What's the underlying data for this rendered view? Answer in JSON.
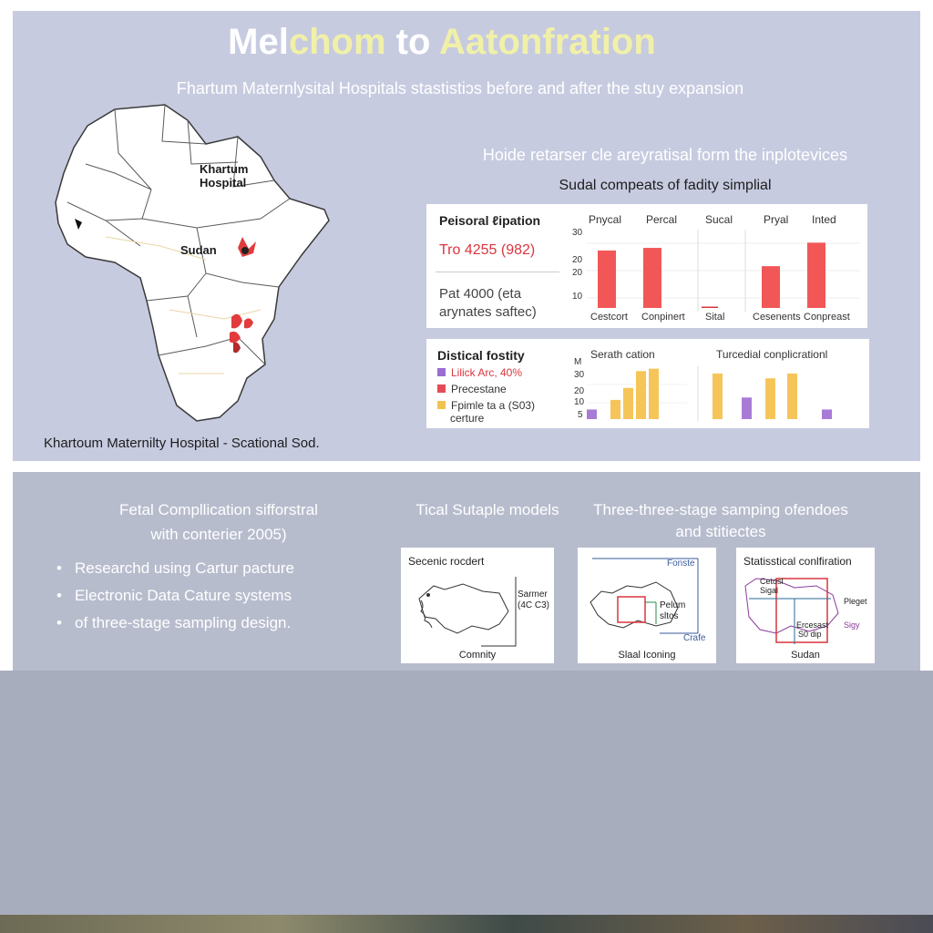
{
  "header": {
    "title_part1": "Mel",
    "title_part2": "chom",
    "title_part3": " to ",
    "title_part4": "Aatonfration",
    "subtitle": "Fhartum Maternlysital Hospitals stastistiɔs before and after the stuy expansion"
  },
  "map": {
    "label_hospital_line1": "Khartum",
    "label_hospital_line2": "Hospital",
    "label_country": "Sudan",
    "caption": "Khartoum Maternilty Hospital - Scational Sod."
  },
  "side": {
    "heading": "Hoide retarser cle areyratisal form the inplotevices",
    "subheading": "Sudal compeats of fadity simplial"
  },
  "card1": {
    "left_title": "Peisoral ℓipation",
    "left_value_red": "Tro 4255 (982)",
    "left_value_line1": "Pat 4000 (eta",
    "left_value_line2": "arynates saftec)",
    "col_labels": [
      "Pnycal",
      "Percal",
      "Sucal",
      "Pryal",
      "Inted"
    ],
    "y_ticks": [
      "30",
      "20",
      "10"
    ],
    "y_ticks_extra": "20",
    "x_labels": [
      "Cestcort",
      "Conpinert",
      "Sital",
      "Cesenents",
      "Conpreast"
    ]
  },
  "card2": {
    "left_title": "Distical fostity",
    "legend": [
      {
        "label": "Lilick Arc, 40%",
        "color": "#9b6cd1"
      },
      {
        "label": "Precestane",
        "color": "#e44c55"
      },
      {
        "label": "Fpimle ta a (S03)",
        "color": "#f2c251"
      }
    ],
    "legend_extra": "certure",
    "mid_title": "Serath cation",
    "right_title": "Turcedial conplicrationl",
    "y_ticks": [
      "M",
      "30",
      "20",
      "10",
      "5"
    ]
  },
  "mid": {
    "left_heading_line1": "Fetal Compllication sifforstral",
    "left_heading_line2": "with conterier 2005)",
    "bullets": [
      "Researchd using Cartur pacture",
      "Electronic Data Cature systems",
      "of three-stage sampling design."
    ],
    "heading_center": "Tical Sutaple models",
    "heading_right_line1": "Three-three-stage samping ofendoes",
    "heading_right_line2": "and stitiectes"
  },
  "map_cards": [
    {
      "title": "Secenic rocdert",
      "side_label_1": "Sarmer",
      "side_label_2": "(4C C3)",
      "caption": "Comnity"
    },
    {
      "title": "Fonste",
      "side_label_1": "Pelum",
      "side_label_2": "sltos",
      "side_label_3": "Crafe",
      "caption": "Slaal Iconing"
    },
    {
      "title": "Statisstical conlfiration",
      "side_label_1": "Cetosl",
      "side_label_2": "Sigal",
      "side_label_3": "Pleget",
      "side_label_4": "Sigy",
      "side_label_5": "Ercesast",
      "side_label_6": "S0 dip",
      "caption": "Sudan"
    }
  ],
  "colors": {
    "red_bar": "#f25757",
    "yellow_bar": "#f6c55a",
    "purple_bar": "#a87bd7",
    "panel_top": "#c7cbe0",
    "panel_mid": "#b7bccd"
  },
  "charts": {
    "card1_bars": [
      {
        "column": 0,
        "value": 22
      },
      {
        "column": 1,
        "value": 23
      },
      {
        "column": 2,
        "value": 0.5
      },
      {
        "column": 3,
        "value": 16
      },
      {
        "column": 4,
        "value": 25
      }
    ],
    "card2_mid_bars": [
      {
        "color": "purple_bar",
        "value": 4
      },
      {
        "color": "yellow_bar",
        "value": 8
      },
      {
        "color": "yellow_bar",
        "value": 13
      },
      {
        "color": "yellow_bar",
        "value": 20
      },
      {
        "color": "yellow_bar",
        "value": 21
      }
    ],
    "card2_right_bars": [
      {
        "color": "yellow_bar",
        "value": 19
      },
      {
        "color": "purple_bar",
        "value": 9
      },
      {
        "color": "yellow_bar",
        "value": 17
      },
      {
        "color": "yellow_bar",
        "value": 19
      },
      {
        "color": "purple_bar",
        "value": 4
      }
    ]
  }
}
